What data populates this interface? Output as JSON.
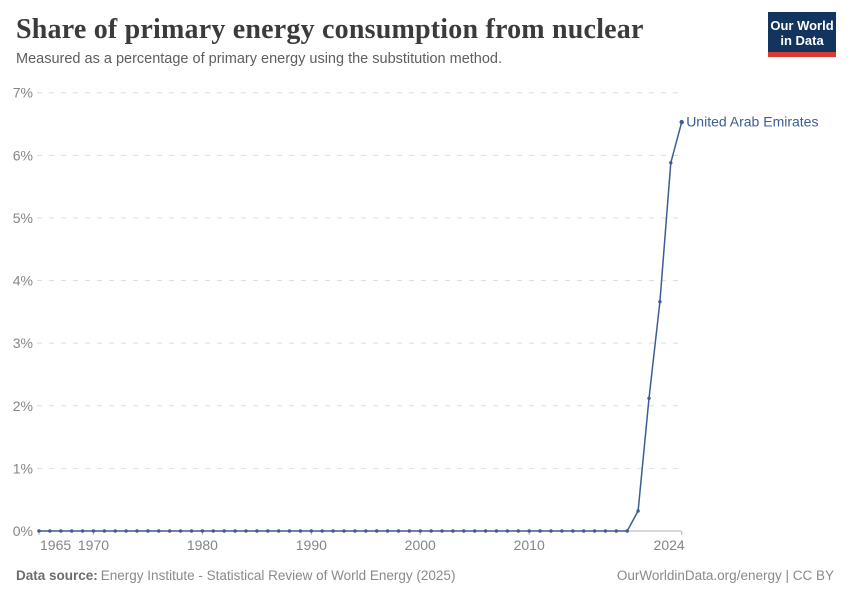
{
  "header": {
    "title": "Share of primary energy consumption from nuclear",
    "subtitle": "Measured as a percentage of primary energy using the substitution method."
  },
  "logo": {
    "line1": "Our World",
    "line2": "in Data",
    "bg_color": "#12355f",
    "stripe_color": "#d93a34"
  },
  "footer": {
    "source_label": "Data source:",
    "source_text": "Energy Institute - Statistical Review of World Energy (2025)",
    "right_text": "OurWorldinData.org/energy | CC BY"
  },
  "chart_data": {
    "type": "line",
    "title": "Share of primary energy consumption from nuclear",
    "subtitle": "Measured as a percentage of primary energy using the substitution method.",
    "xlabel": "",
    "ylabel": "",
    "xlim": [
      1965,
      2024
    ],
    "ylim": [
      0,
      7
    ],
    "grid": "horizontal-dashed",
    "legend_position": "end-of-line-label",
    "colors": {
      "series_blue": "#3d5c94",
      "gridline": "#dedede",
      "axis": "#b0b0b0",
      "tick_label": "#858585"
    },
    "y_axis": {
      "ticks": [
        {
          "value": 0,
          "label": "0%"
        },
        {
          "value": 1,
          "label": "1%"
        },
        {
          "value": 2,
          "label": "2%"
        },
        {
          "value": 3,
          "label": "3%"
        },
        {
          "value": 4,
          "label": "4%"
        },
        {
          "value": 5,
          "label": "5%"
        },
        {
          "value": 6,
          "label": "6%"
        },
        {
          "value": 7,
          "label": "7%"
        }
      ]
    },
    "x_axis": {
      "ticks": [
        {
          "year": 1965,
          "label": "1965",
          "align": "start"
        },
        {
          "year": 1970,
          "label": "1970",
          "align": "middle"
        },
        {
          "year": 1980,
          "label": "1980",
          "align": "middle"
        },
        {
          "year": 1990,
          "label": "1990",
          "align": "middle"
        },
        {
          "year": 2000,
          "label": "2000",
          "align": "middle"
        },
        {
          "year": 2010,
          "label": "2010",
          "align": "middle"
        },
        {
          "year": 2024,
          "label": "2024",
          "align": "end"
        }
      ]
    },
    "series": [
      {
        "name": "United Arab Emirates",
        "color": "#3d5c94",
        "start_year": 1965,
        "end_year": 2024,
        "values": [
          0,
          0,
          0,
          0,
          0,
          0,
          0,
          0,
          0,
          0,
          0,
          0,
          0,
          0,
          0,
          0,
          0,
          0,
          0,
          0,
          0,
          0,
          0,
          0,
          0,
          0,
          0,
          0,
          0,
          0,
          0,
          0,
          0,
          0,
          0,
          0,
          0,
          0,
          0,
          0,
          0,
          0,
          0,
          0,
          0,
          0,
          0,
          0,
          0,
          0,
          0,
          0,
          0,
          0,
          0,
          0.32,
          2.12,
          3.66,
          5.88,
          6.53
        ]
      }
    ]
  }
}
